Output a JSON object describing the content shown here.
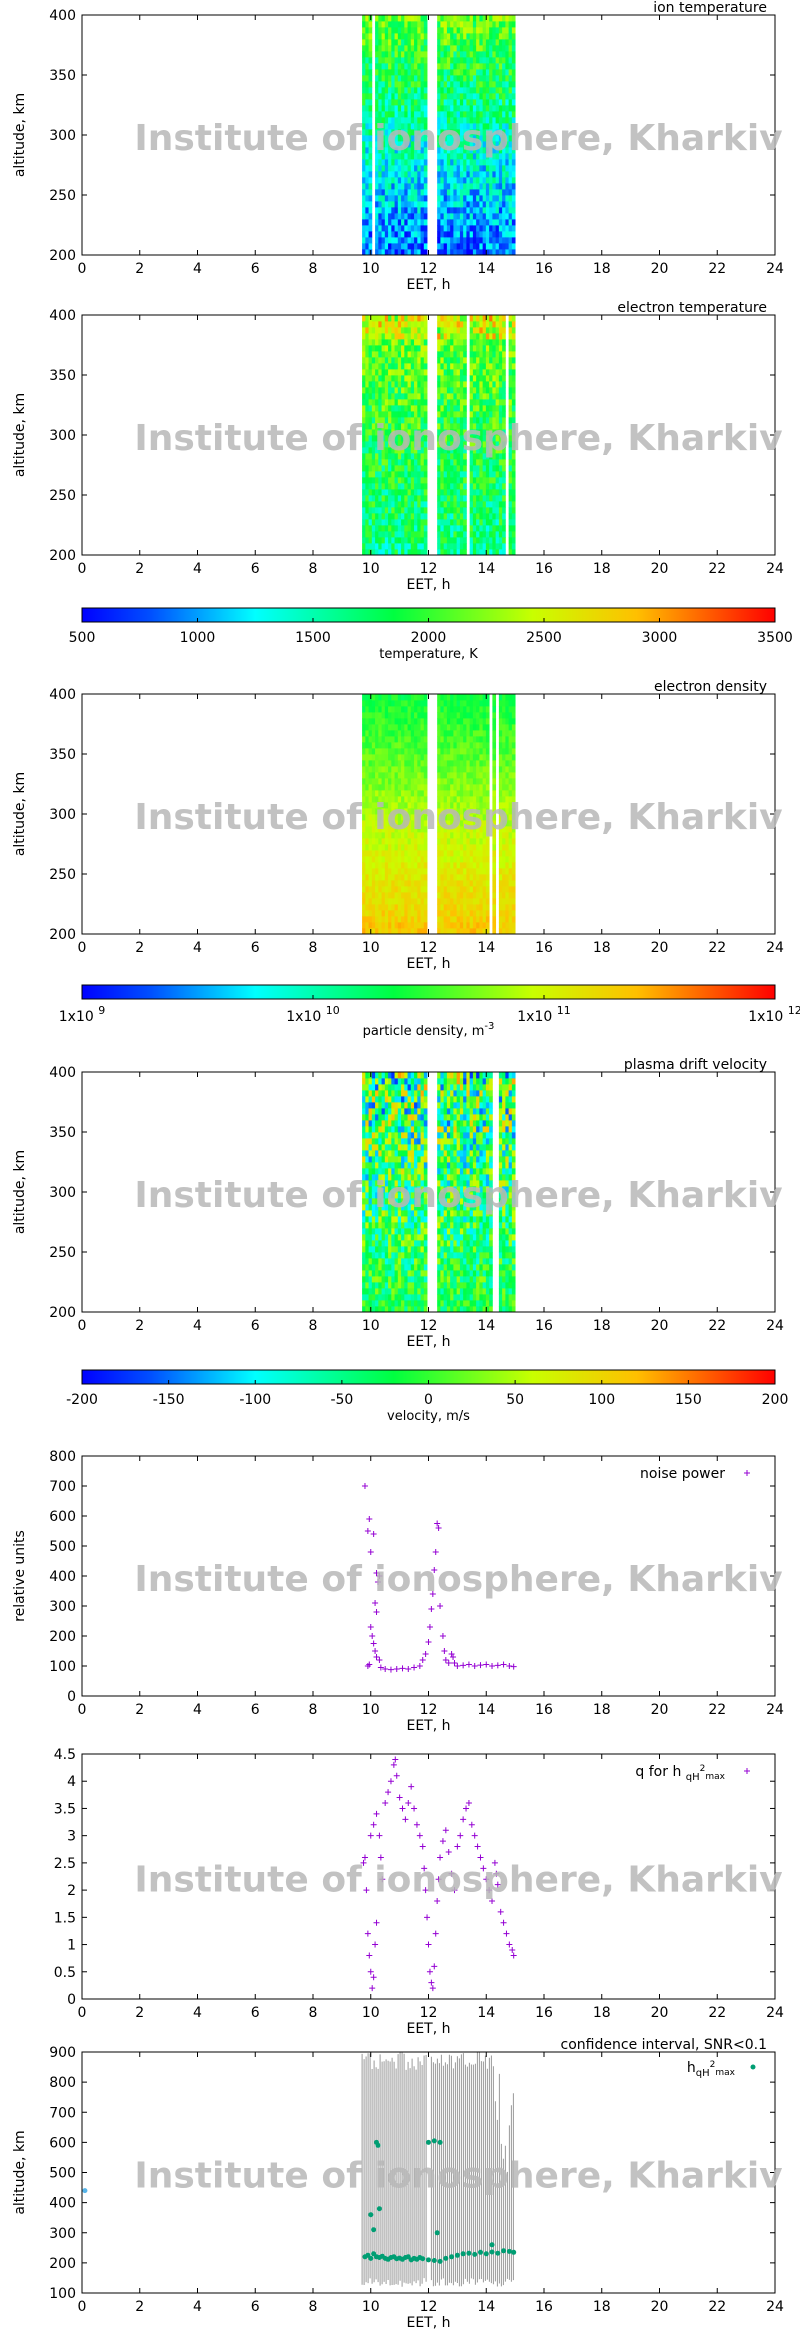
{
  "watermark": "Institute of ionosphere, Kharkiv",
  "colors": {
    "heat_stops": [
      "#0000ff",
      "#00ffff",
      "#00ff00",
      "#ffff00",
      "#ff0000"
    ],
    "purple": "#9400d3",
    "teal": "#009e73",
    "gray": "#9a9a9a",
    "blue_point": "#56b4e9"
  },
  "chart_data": [
    {
      "id": "ion_temperature",
      "type": "heatmap",
      "title": "ion temperature",
      "xlabel": "EET, h",
      "ylabel": "altitude, km",
      "xlim": [
        0,
        24
      ],
      "ylim": [
        200,
        400
      ],
      "x_ticks": [
        "0",
        "2",
        "4",
        "6",
        "8",
        "10",
        "12",
        "14",
        "16",
        "18",
        "20",
        "22",
        "24"
      ],
      "y_ticks": [
        "200",
        "250",
        "300",
        "350",
        "400"
      ],
      "data_intervals_h": [
        [
          9.7,
          11.95
        ],
        [
          12.3,
          15.0
        ]
      ],
      "value_range_K": [
        700,
        2000
      ]
    },
    {
      "id": "electron_temperature",
      "type": "heatmap",
      "title": "electron temperature",
      "xlabel": "EET, h",
      "ylabel": "altitude, km",
      "xlim": [
        0,
        24
      ],
      "ylim": [
        200,
        400
      ],
      "x_ticks": [
        "0",
        "2",
        "4",
        "6",
        "8",
        "10",
        "12",
        "14",
        "16",
        "18",
        "20",
        "22",
        "24"
      ],
      "y_ticks": [
        "200",
        "250",
        "300",
        "350",
        "400"
      ],
      "data_intervals_h": [
        [
          9.7,
          11.95
        ],
        [
          12.3,
          15.0
        ]
      ],
      "value_range_K": [
        1400,
        3200
      ],
      "colorbar": {
        "label": "temperature, K",
        "ticks": [
          "500",
          "1000",
          "1500",
          "2000",
          "2500",
          "3000",
          "3500"
        ],
        "range": [
          500,
          3500
        ]
      }
    },
    {
      "id": "electron_density",
      "type": "heatmap",
      "title": "electron density",
      "xlabel": "EET, h",
      "ylabel": "altitude, km",
      "xlim": [
        0,
        24
      ],
      "ylim": [
        200,
        400
      ],
      "x_ticks": [
        "0",
        "2",
        "4",
        "6",
        "8",
        "10",
        "12",
        "14",
        "16",
        "18",
        "20",
        "22",
        "24"
      ],
      "y_ticks": [
        "200",
        "250",
        "300",
        "350",
        "400"
      ],
      "data_intervals_h": [
        [
          9.7,
          11.95
        ],
        [
          12.3,
          15.0
        ]
      ],
      "value_range_log10_m3": [
        10.8,
        11.6
      ],
      "colorbar": {
        "label": "particle density, m",
        "label_sup": "-3",
        "ticks": [
          {
            "base": "1x10",
            "exp": "9"
          },
          {
            "base": "1x10",
            "exp": "10"
          },
          {
            "base": "1x10",
            "exp": "11"
          },
          {
            "base": "1x10",
            "exp": "12"
          }
        ],
        "range_log10": [
          9,
          12
        ]
      }
    },
    {
      "id": "plasma_drift_velocity",
      "type": "heatmap",
      "title": "plasma drift velocity",
      "xlabel": "EET, h",
      "ylabel": "altitude, km",
      "xlim": [
        0,
        24
      ],
      "ylim": [
        200,
        400
      ],
      "x_ticks": [
        "0",
        "2",
        "4",
        "6",
        "8",
        "10",
        "12",
        "14",
        "16",
        "18",
        "20",
        "22",
        "24"
      ],
      "y_ticks": [
        "200",
        "250",
        "300",
        "350",
        "400"
      ],
      "data_intervals_h": [
        [
          9.7,
          11.95
        ],
        [
          12.3,
          15.0
        ]
      ],
      "value_range_m_s": [
        -120,
        120
      ],
      "colorbar": {
        "label": "velocity, m/s",
        "ticks": [
          "-200",
          "-150",
          "-100",
          "-50",
          "0",
          "50",
          "100",
          "150",
          "200"
        ],
        "range": [
          -200,
          200
        ]
      }
    },
    {
      "id": "noise_power",
      "type": "scatter",
      "title": "",
      "legend": "noise power",
      "xlabel": "EET, h",
      "ylabel": "relative units",
      "xlim": [
        0,
        24
      ],
      "ylim": [
        0,
        800
      ],
      "x_ticks": [
        "0",
        "2",
        "4",
        "6",
        "8",
        "10",
        "12",
        "14",
        "16",
        "18",
        "20",
        "22",
        "24"
      ],
      "y_ticks": [
        "0",
        "100",
        "200",
        "300",
        "400",
        "500",
        "600",
        "700",
        "800"
      ],
      "points": [
        [
          9.8,
          700
        ],
        [
          9.95,
          590
        ],
        [
          9.9,
          550
        ],
        [
          10.1,
          540
        ],
        [
          10.0,
          480
        ],
        [
          10.2,
          410
        ],
        [
          10.3,
          400
        ],
        [
          10.25,
          380
        ],
        [
          10.15,
          310
        ],
        [
          10.2,
          280
        ],
        [
          10.0,
          230
        ],
        [
          10.05,
          200
        ],
        [
          10.1,
          175
        ],
        [
          10.15,
          150
        ],
        [
          10.2,
          130
        ],
        [
          10.3,
          120
        ],
        [
          9.9,
          100
        ],
        [
          9.95,
          105
        ],
        [
          10.35,
          95
        ],
        [
          10.5,
          90
        ],
        [
          10.7,
          88
        ],
        [
          10.9,
          90
        ],
        [
          11.1,
          92
        ],
        [
          11.3,
          90
        ],
        [
          11.5,
          95
        ],
        [
          11.7,
          100
        ],
        [
          11.8,
          120
        ],
        [
          11.9,
          140
        ],
        [
          12.0,
          180
        ],
        [
          12.05,
          230
        ],
        [
          12.1,
          290
        ],
        [
          12.15,
          340
        ],
        [
          12.2,
          420
        ],
        [
          12.25,
          480
        ],
        [
          12.3,
          575
        ],
        [
          12.35,
          560
        ],
        [
          12.4,
          300
        ],
        [
          12.5,
          200
        ],
        [
          12.55,
          150
        ],
        [
          12.6,
          120
        ],
        [
          12.7,
          110
        ],
        [
          12.8,
          140
        ],
        [
          12.85,
          130
        ],
        [
          12.9,
          110
        ],
        [
          13.0,
          100
        ],
        [
          13.2,
          102
        ],
        [
          13.4,
          105
        ],
        [
          13.6,
          100
        ],
        [
          13.8,
          103
        ],
        [
          14.0,
          105
        ],
        [
          14.2,
          100
        ],
        [
          14.4,
          102
        ],
        [
          14.6,
          105
        ],
        [
          14.8,
          100
        ],
        [
          14.95,
          98
        ]
      ]
    },
    {
      "id": "q_for_h",
      "type": "scatter",
      "title": "",
      "legend": "q for h",
      "legend_sub": "qH",
      "legend_sup": "2",
      "legend_sub2": "max",
      "xlabel": "EET, h",
      "ylabel": "",
      "xlim": [
        0,
        24
      ],
      "ylim": [
        0,
        4.5
      ],
      "x_ticks": [
        "0",
        "2",
        "4",
        "6",
        "8",
        "10",
        "12",
        "14",
        "16",
        "18",
        "20",
        "22",
        "24"
      ],
      "y_ticks": [
        "0",
        "0.5",
        "1",
        "1.5",
        "2",
        "2.5",
        "3",
        "3.5",
        "4",
        "4.5"
      ],
      "points": [
        [
          9.75,
          2.5
        ],
        [
          9.8,
          2.6
        ],
        [
          9.85,
          2.0
        ],
        [
          9.9,
          1.2
        ],
        [
          9.95,
          0.8
        ],
        [
          10.0,
          0.5
        ],
        [
          10.05,
          0.2
        ],
        [
          10.1,
          0.4
        ],
        [
          10.15,
          1.0
        ],
        [
          10.2,
          1.4
        ],
        [
          10.0,
          3.0
        ],
        [
          10.1,
          3.2
        ],
        [
          10.2,
          3.4
        ],
        [
          10.3,
          3.0
        ],
        [
          10.35,
          2.6
        ],
        [
          10.4,
          2.2
        ],
        [
          10.5,
          3.6
        ],
        [
          10.6,
          3.8
        ],
        [
          10.7,
          4.0
        ],
        [
          10.8,
          4.3
        ],
        [
          10.85,
          4.4
        ],
        [
          10.9,
          4.1
        ],
        [
          11.0,
          3.7
        ],
        [
          11.1,
          3.5
        ],
        [
          11.2,
          3.3
        ],
        [
          11.3,
          3.6
        ],
        [
          11.4,
          3.9
        ],
        [
          11.5,
          3.5
        ],
        [
          11.6,
          3.2
        ],
        [
          11.7,
          3.0
        ],
        [
          11.8,
          2.8
        ],
        [
          11.85,
          2.4
        ],
        [
          11.9,
          2.0
        ],
        [
          11.95,
          1.5
        ],
        [
          12.0,
          1.0
        ],
        [
          12.05,
          0.5
        ],
        [
          12.1,
          0.3
        ],
        [
          12.15,
          0.2
        ],
        [
          12.2,
          0.6
        ],
        [
          12.25,
          1.2
        ],
        [
          12.3,
          1.8
        ],
        [
          12.35,
          2.2
        ],
        [
          12.4,
          2.6
        ],
        [
          12.5,
          2.9
        ],
        [
          12.6,
          3.1
        ],
        [
          12.7,
          2.7
        ],
        [
          12.8,
          2.3
        ],
        [
          12.9,
          2.0
        ],
        [
          13.0,
          2.8
        ],
        [
          13.1,
          3.0
        ],
        [
          13.2,
          3.3
        ],
        [
          13.3,
          3.5
        ],
        [
          13.4,
          3.6
        ],
        [
          13.5,
          3.2
        ],
        [
          13.6,
          3.0
        ],
        [
          13.7,
          2.8
        ],
        [
          13.8,
          2.6
        ],
        [
          13.9,
          2.4
        ],
        [
          14.0,
          2.2
        ],
        [
          14.1,
          2.0
        ],
        [
          14.2,
          1.8
        ],
        [
          14.3,
          2.5
        ],
        [
          14.35,
          2.3
        ],
        [
          14.4,
          2.1
        ],
        [
          14.5,
          1.6
        ],
        [
          14.6,
          1.4
        ],
        [
          14.7,
          1.2
        ],
        [
          14.8,
          1.0
        ],
        [
          14.9,
          0.9
        ],
        [
          14.95,
          0.8
        ]
      ]
    },
    {
      "id": "confidence_interval",
      "type": "scatter",
      "title": "confidence interval, SNR<0.1",
      "legend": "h",
      "legend_sub": "qH",
      "legend_sup": "2",
      "legend_sub2": "max",
      "xlabel": "EET, h",
      "ylabel": "altitude, km",
      "xlim": [
        0,
        24
      ],
      "ylim": [
        100,
        900
      ],
      "x_ticks": [
        "0",
        "2",
        "4",
        "6",
        "8",
        "10",
        "12",
        "14",
        "16",
        "18",
        "20",
        "22",
        "24"
      ],
      "y_ticks": [
        "100",
        "200",
        "300",
        "400",
        "500",
        "600",
        "700",
        "800",
        "900"
      ],
      "gray_band_h": [
        [
          9.7,
          11.95
        ],
        [
          12.1,
          15.0
        ]
      ],
      "points": [
        [
          9.8,
          220
        ],
        [
          9.9,
          225
        ],
        [
          10.0,
          215
        ],
        [
          10.1,
          230
        ],
        [
          10.2,
          220
        ],
        [
          10.3,
          218
        ],
        [
          10.4,
          222
        ],
        [
          10.5,
          215
        ],
        [
          10.6,
          212
        ],
        [
          10.7,
          218
        ],
        [
          10.8,
          220
        ],
        [
          10.9,
          214
        ],
        [
          11.0,
          216
        ],
        [
          11.1,
          212
        ],
        [
          11.2,
          218
        ],
        [
          11.3,
          220
        ],
        [
          11.4,
          210
        ],
        [
          11.5,
          215
        ],
        [
          11.6,
          212
        ],
        [
          11.7,
          218
        ],
        [
          11.8,
          214
        ],
        [
          12.0,
          210
        ],
        [
          12.2,
          208
        ],
        [
          12.4,
          205
        ],
        [
          12.6,
          215
        ],
        [
          12.8,
          220
        ],
        [
          13.0,
          225
        ],
        [
          13.2,
          230
        ],
        [
          13.4,
          232
        ],
        [
          13.6,
          228
        ],
        [
          13.8,
          235
        ],
        [
          14.0,
          230
        ],
        [
          14.2,
          236
        ],
        [
          14.4,
          232
        ],
        [
          14.6,
          240
        ],
        [
          14.8,
          238
        ],
        [
          14.95,
          235
        ],
        [
          10.2,
          600
        ],
        [
          10.25,
          590
        ],
        [
          12.0,
          600
        ],
        [
          12.2,
          605
        ],
        [
          12.4,
          600
        ],
        [
          10.0,
          360
        ],
        [
          10.1,
          310
        ],
        [
          10.3,
          380
        ],
        [
          12.3,
          300
        ],
        [
          14.2,
          260
        ]
      ],
      "extra_point": [
        0.1,
        440
      ]
    }
  ]
}
